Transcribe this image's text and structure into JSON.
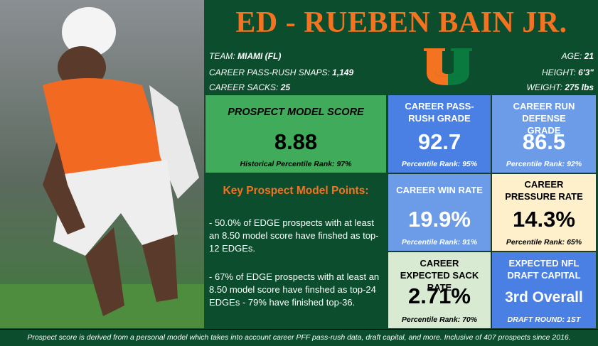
{
  "header": {
    "title": "ED - RUEBEN BAIN JR.",
    "left_info": [
      {
        "label": "TEAM:",
        "value": "MIAMI (FL)"
      },
      {
        "label": "CAREER PASS-RUSH SNAPS:",
        "value": "1,149"
      },
      {
        "label": "CAREER SACKS:",
        "value": "25"
      }
    ],
    "right_info": [
      {
        "label": "AGE:",
        "value": "21"
      },
      {
        "label": "HEIGHT:",
        "value": "6'3\""
      },
      {
        "label": "WEIGHT:",
        "value": "275 lbs"
      }
    ]
  },
  "cards": [
    {
      "title": "PROSPECT MODEL SCORE",
      "value": "8.88",
      "note": "Historical Percentile Rank: 97%"
    },
    {
      "title": "CAREER PASS-RUSH GRADE",
      "value": "92.7",
      "note": "Percentile Rank: 95%"
    },
    {
      "title": "CAREER RUN DEFENSE GRADE",
      "value": "86.5",
      "note": "Percentile Rank: 92%"
    },
    {
      "title": "CAREER WIN RATE",
      "value": "19.9%",
      "note": "Percentile Rank: 91%"
    },
    {
      "title": "CAREER PRESSURE RATE",
      "value": "14.3%",
      "note": "Percentile Rank: 65%"
    },
    {
      "title": "CAREER EXPECTED SACK RATE",
      "value": "2.71%",
      "note": "Percentile Rank: 70%"
    },
    {
      "title": "EXPECTED NFL DRAFT CAPITAL",
      "value": "3rd Overall",
      "note": "DRAFT ROUND: 1ST"
    }
  ],
  "key_points": {
    "title": "Key Prospect Model Points:",
    "items": [
      "- 50.0% of EDGE prospects with at least an 8.50 model score have finshed as top-12 EDGEs.",
      "- 67% of EDGE prospects with at least an 8.50 model score have finshed as top-24 EDGEs - 79% have finished top-36."
    ]
  },
  "footer": "Prospect score is derived from a personal model which takes into account career PFF pass-rush data, draft capital, and more. Inclusive of 407 prospects since 2016."
}
